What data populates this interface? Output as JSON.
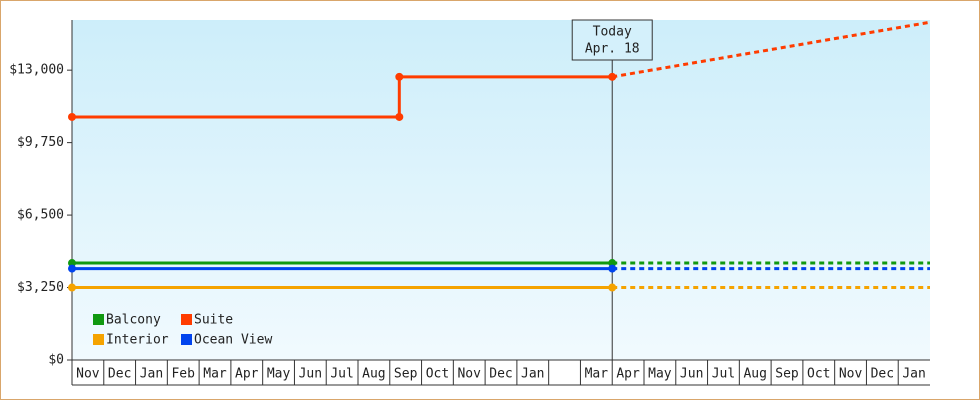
{
  "chart_data": {
    "type": "line",
    "categories": [
      "Nov",
      "Dec",
      "Jan",
      "Feb",
      "Mar",
      "Apr",
      "May",
      "Jun",
      "Jul",
      "Aug",
      "Sep",
      "Oct",
      "Nov",
      "Dec",
      "Jan",
      null,
      "Mar",
      "Apr",
      "May",
      "Jun",
      "Jul",
      "Aug",
      "Sep",
      "Oct",
      "Nov",
      "Dec",
      "Jan"
    ],
    "xlim": [
      0,
      27
    ],
    "ylim": [
      0,
      15250
    ],
    "yticks": [
      {
        "value": 0,
        "label": "$0"
      },
      {
        "value": 3250,
        "label": "$3,250"
      },
      {
        "value": 6500,
        "label": "$6,500"
      },
      {
        "value": 9750,
        "label": "$9,750"
      },
      {
        "value": 13000,
        "label": "$13,000"
      }
    ],
    "series": [
      {
        "name": "Balcony",
        "color": "#119911",
        "x": [
          0,
          17
        ],
        "values": [
          4350,
          4350
        ],
        "forecast_x": [
          17,
          27
        ],
        "forecast": [
          4350,
          4350
        ]
      },
      {
        "name": "Suite",
        "color": "#ff3c00",
        "x": [
          0,
          10.3,
          10.3,
          17
        ],
        "values": [
          10900,
          10900,
          12700,
          12700
        ],
        "forecast_x": [
          17,
          27
        ],
        "forecast": [
          12700,
          15150
        ]
      },
      {
        "name": "Interior",
        "color": "#f5a300",
        "x": [
          0,
          17
        ],
        "values": [
          3250,
          3250
        ],
        "forecast_x": [
          17,
          27
        ],
        "forecast": [
          3250,
          3250
        ]
      },
      {
        "name": "Ocean View",
        "color": "#0044ee",
        "x": [
          0,
          17
        ],
        "values": [
          4100,
          4100
        ],
        "forecast_x": [
          17,
          27
        ],
        "forecast": [
          4100,
          4100
        ]
      }
    ],
    "today": {
      "x": 17,
      "label": "Today",
      "date": "Apr. 18"
    }
  }
}
